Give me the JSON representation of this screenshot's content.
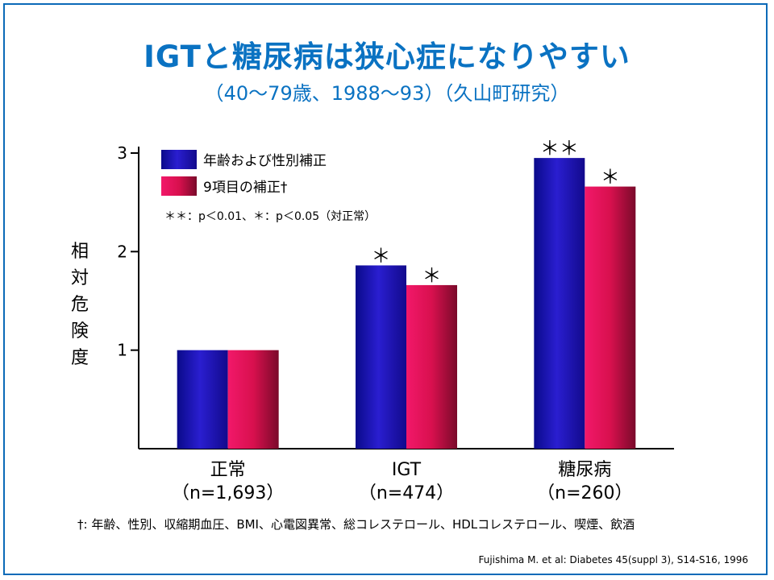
{
  "title": "IGTと糖尿病は狭心症になりやすい",
  "subtitle": "（40〜79歳、1988〜93）（久山町研究）",
  "ylabel": "相対危険度",
  "footnote": "†: 年齢、性別、収縮期血圧、BMI、心電図異常、総コレステロール、HDLコレステロール、喫煙、飲酒",
  "citation": "Fujishima M. et al: Diabetes 45(suppl 3), S14-S16, 1996",
  "significance_note": "＊＊：p＜0.01、＊：p＜0.05（対正常）",
  "colors": {
    "frame": "#0b6ab8",
    "title": "#0a72c2",
    "series_blue": "#1a10b0",
    "series_red": "#e0105a"
  },
  "chart_data": {
    "type": "bar",
    "categories": [
      "正常",
      "IGT",
      "糖尿病"
    ],
    "category_sublabels": [
      "（n=1,693）",
      "（n=474）",
      "（n=260）"
    ],
    "series": [
      {
        "name": "年齢および性別補正",
        "values": [
          1.0,
          1.86,
          2.95
        ],
        "significance": [
          "",
          "＊",
          "＊＊"
        ]
      },
      {
        "name": "9項目の補正†",
        "values": [
          1.0,
          1.66,
          2.66
        ],
        "significance": [
          "",
          "＊",
          "＊"
        ]
      }
    ],
    "ylabel": "相対危険度",
    "yticks": [
      1,
      2,
      3
    ],
    "ylim": [
      0,
      3.0
    ],
    "legend_position": "top-left",
    "grid": false
  }
}
